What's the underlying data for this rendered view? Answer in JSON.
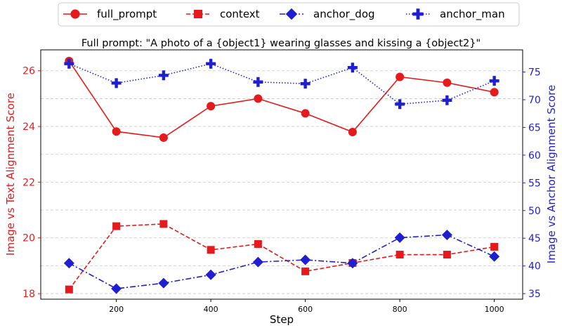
{
  "chart_data": {
    "type": "line",
    "title": "Full prompt: \"A photo of a {object1} wearing glasses and kissing a {object2}\"",
    "xlabel": "Step",
    "ylabel_left": "Image vs Text Alignment Score",
    "ylabel_right": "Image vs Anchor Alignment Score",
    "x": [
      100,
      200,
      300,
      400,
      500,
      600,
      700,
      800,
      900,
      1000
    ],
    "xlim": [
      40,
      1060
    ],
    "ylim_left": [
      17.8,
      26.75
    ],
    "ylim_right": [
      34.0,
      79.0
    ],
    "x_ticks": [
      200,
      400,
      600,
      800,
      1000
    ],
    "y_ticks_left": [
      18,
      20,
      22,
      24,
      26
    ],
    "y_ticks_right": [
      35,
      40,
      45,
      50,
      55,
      60,
      65,
      70,
      75
    ],
    "left_axis_color": "#e41a1c",
    "right_axis_color": "#1f1fd0",
    "grid": "horizontal dashed",
    "legend_placement": "top-center",
    "series": [
      {
        "name": "full_prompt",
        "axis": "left",
        "color": "#e41a1c",
        "marker": "circle",
        "linestyle": "solid",
        "values": [
          26.35,
          23.82,
          23.6,
          24.73,
          25.0,
          24.47,
          23.8,
          25.78,
          25.57,
          25.23
        ]
      },
      {
        "name": "context",
        "axis": "left",
        "color": "#e41a1c",
        "marker": "square",
        "linestyle": "dashed",
        "values": [
          18.15,
          20.42,
          20.5,
          19.57,
          19.78,
          18.8,
          19.1,
          19.4,
          19.4,
          19.68
        ]
      },
      {
        "name": "anchor_dog",
        "axis": "right",
        "color": "#1f1fd0",
        "marker": "diamond",
        "linestyle": "dashdot",
        "values": [
          40.5,
          35.9,
          36.9,
          38.4,
          40.7,
          41.1,
          40.5,
          45.1,
          45.6,
          41.7
        ]
      },
      {
        "name": "anchor_man",
        "axis": "right",
        "color": "#1f1fd0",
        "marker": "plus",
        "linestyle": "dotted",
        "values": [
          76.5,
          73.0,
          74.4,
          76.5,
          73.2,
          72.9,
          75.8,
          69.2,
          69.9,
          73.4
        ]
      }
    ]
  }
}
